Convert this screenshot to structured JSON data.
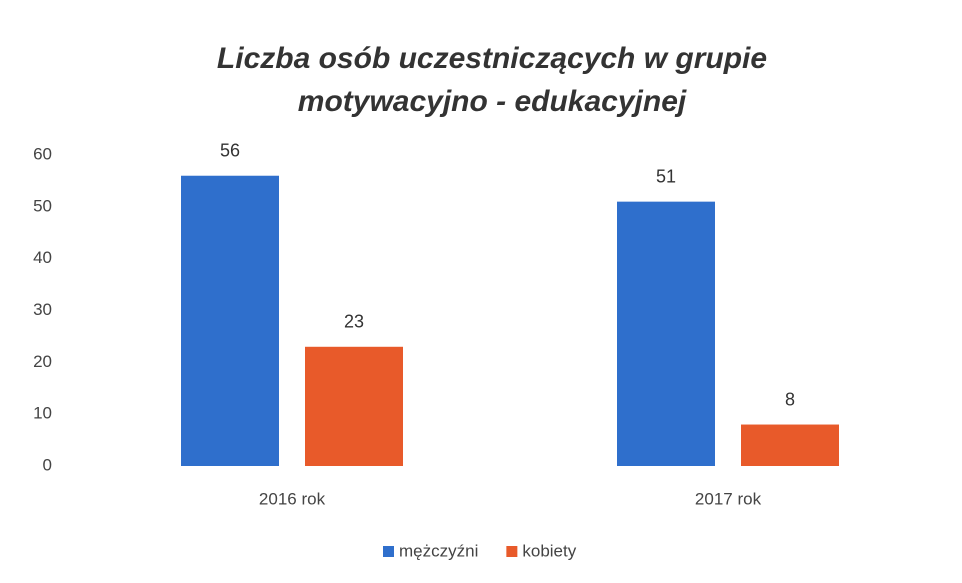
{
  "chart_data": {
    "type": "bar",
    "title": [
      "Liczba osób uczestniczących w grupie",
      "motywacyjno - edukacyjnej"
    ],
    "categories": [
      "2016 rok",
      "2017 rok"
    ],
    "series": [
      {
        "name": "mężczyźni",
        "color": "#2f6fcc",
        "values": [
          56,
          51
        ]
      },
      {
        "name": "kobiety",
        "color": "#e85a2a",
        "values": [
          23,
          8
        ]
      }
    ],
    "ylim": [
      0,
      60
    ],
    "yticks": [
      0,
      10,
      20,
      30,
      40,
      50,
      60
    ],
    "grid": false,
    "legend": "bottom"
  }
}
